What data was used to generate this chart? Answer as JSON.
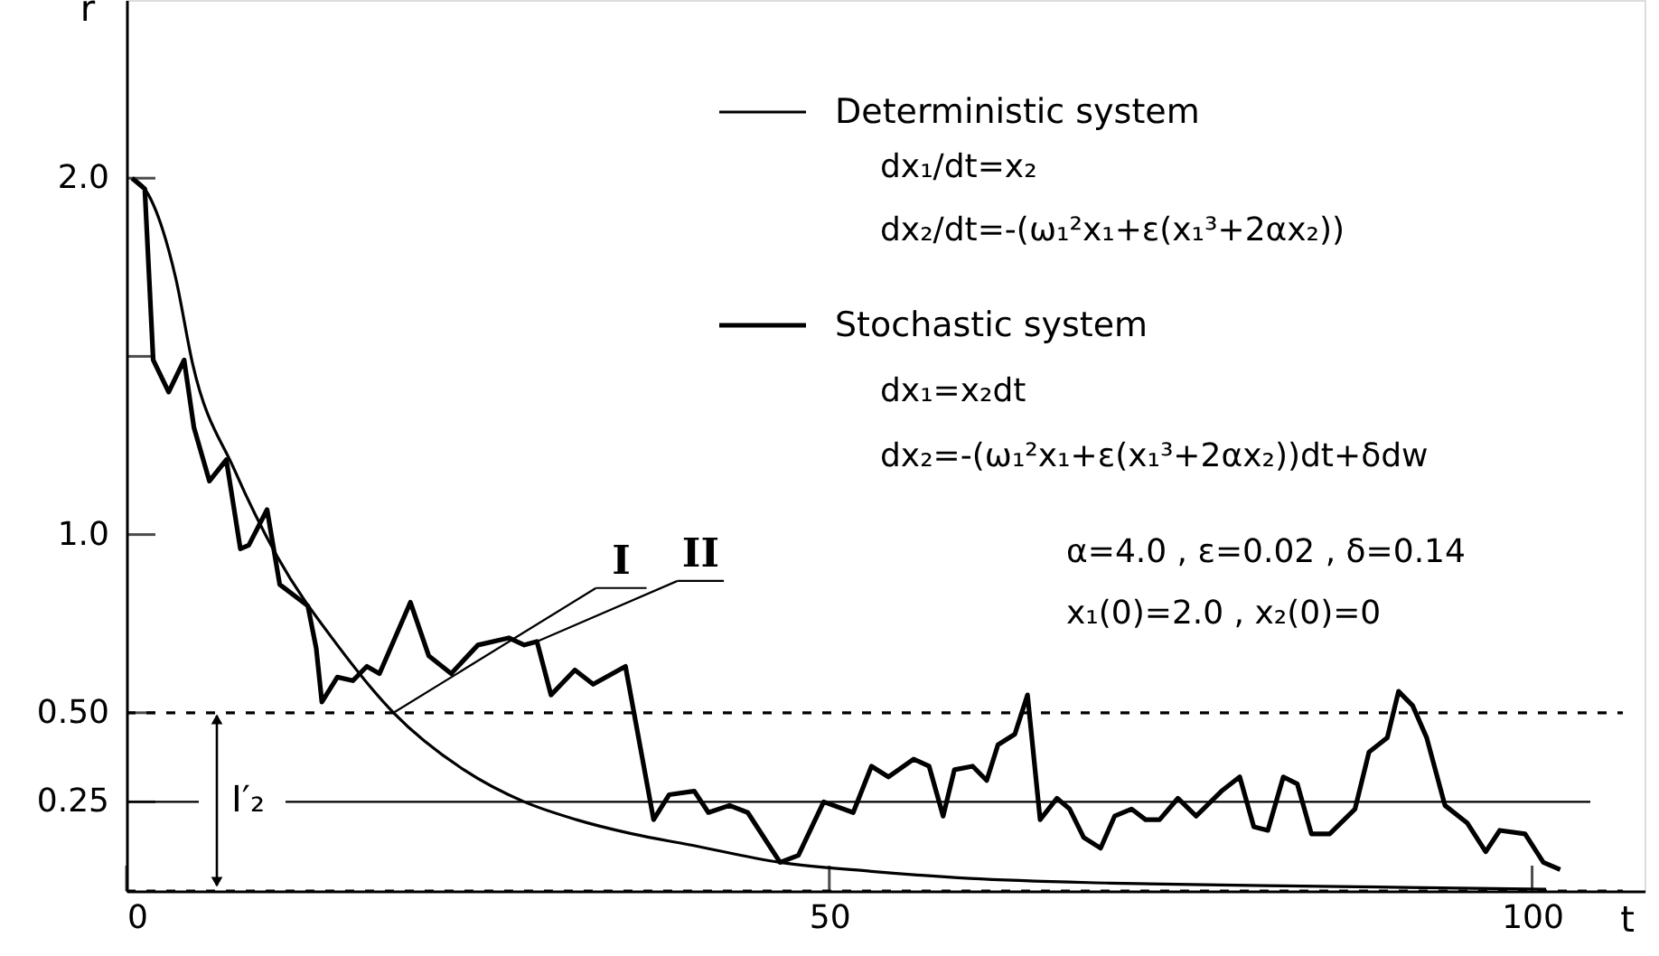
{
  "chart_data": {
    "type": "line",
    "xlabel": "t",
    "ylabel": "r",
    "xlim": [
      0,
      108
    ],
    "ylim": [
      0,
      2.5
    ],
    "xticks": [
      0,
      50,
      100
    ],
    "yticks": [
      0.25,
      {
        "value": 0.5,
        "label": "0.50"
      },
      {
        "value": 1,
        "label": "1.0"
      },
      {
        "value": 1.5,
        "label": null
      },
      {
        "value": 2,
        "label": "2.0"
      }
    ],
    "grid": false,
    "legend": "top right",
    "series": [
      {
        "name": "Deterministic system",
        "color": "#000000",
        "x": [
          0.4,
          1.3,
          3.5,
          4.7,
          7.7,
          10.7,
          15,
          19,
          24,
          28.3,
          32,
          36,
          40,
          46.5,
          53,
          60,
          70,
          81,
          91,
          101
        ],
        "values": [
          2.0,
          1.97,
          1.72,
          1.48,
          1.18,
          0.94,
          0.69,
          0.5,
          0.34,
          0.25,
          0.2,
          0.16,
          0.13,
          0.08,
          0.055,
          0.035,
          0.022,
          0.015,
          0.01,
          0.005
        ]
      },
      {
        "name": "Stochastic system",
        "color": "#000000",
        "x": [
          0.4,
          1.3,
          1.9,
          3.0,
          4.1,
          4.8,
          5.9,
          7.1,
          8.1,
          8.7,
          10,
          10.9,
          12.9,
          13.5,
          13.9,
          15,
          16.1,
          17.1,
          18,
          20.2,
          21.5,
          23.1,
          25,
          27.2,
          28.3,
          29.2,
          30.2,
          31.9,
          33.2,
          35.5,
          37.5,
          38.6,
          40.4,
          41.4,
          42.9,
          44.2,
          46.5,
          47.8,
          49.6,
          51.7,
          53,
          54.2,
          56,
          57.1,
          58.1,
          58.9,
          60.2,
          61.2,
          62,
          63.2,
          64.1,
          65,
          66.2,
          67.1,
          68.1,
          69.3,
          70.3,
          71.5,
          72.5,
          73.5,
          74.8,
          76.1,
          77.9,
          79.2,
          80.2,
          81.2,
          82.3,
          83.3,
          84.3,
          85.6,
          87.4,
          88.4,
          89.7,
          90.5,
          91.5,
          92.5,
          93.8,
          95.4,
          96.7,
          97.7,
          99.5,
          100.8,
          102
        ],
        "values": [
          2.0,
          1.97,
          1.49,
          1.4,
          1.49,
          1.3,
          1.15,
          1.21,
          0.96,
          0.97,
          1.07,
          0.86,
          0.8,
          0.68,
          0.53,
          0.6,
          0.59,
          0.63,
          0.61,
          0.81,
          0.66,
          0.61,
          0.69,
          0.71,
          0.69,
          0.7,
          0.55,
          0.62,
          0.58,
          0.63,
          0.2,
          0.27,
          0.28,
          0.22,
          0.24,
          0.22,
          0.08,
          0.1,
          0.25,
          0.22,
          0.35,
          0.32,
          0.37,
          0.35,
          0.21,
          0.34,
          0.35,
          0.31,
          0.41,
          0.44,
          0.55,
          0.2,
          0.26,
          0.23,
          0.15,
          0.12,
          0.21,
          0.23,
          0.2,
          0.2,
          0.26,
          0.21,
          0.28,
          0.32,
          0.18,
          0.17,
          0.32,
          0.3,
          0.16,
          0.16,
          0.23,
          0.39,
          0.43,
          0.56,
          0.52,
          0.43,
          0.24,
          0.19,
          0.11,
          0.17,
          0.16,
          0.08,
          0.06
        ]
      }
    ],
    "ref_lines": [
      {
        "axis": "y",
        "value": 0.25
      },
      {
        "axis": "y",
        "value": 0.5,
        "line_style": "dashed"
      },
      {
        "axis": "y",
        "value": 0,
        "line_style": "dashed"
      }
    ],
    "annotations": [
      "dx₁/dt=x₂",
      "dx₂/dt=-(ω₁²x₁+ε(x₁³+2αx₂))",
      "dx₁=x₂dt",
      "dx₂=-(ω₁²x₁+ε(x₁³+2αx₂))dt+δdw",
      "α=4.0 , ε=0.02 , δ=0.14",
      "x₁(0)=2.0 , x₂(0)=0",
      "I′₂",
      {
        "text": "I",
        "x": 19,
        "y": 0.5
      },
      {
        "text": "II",
        "x": 29.2,
        "y": 0.7
      }
    ]
  }
}
